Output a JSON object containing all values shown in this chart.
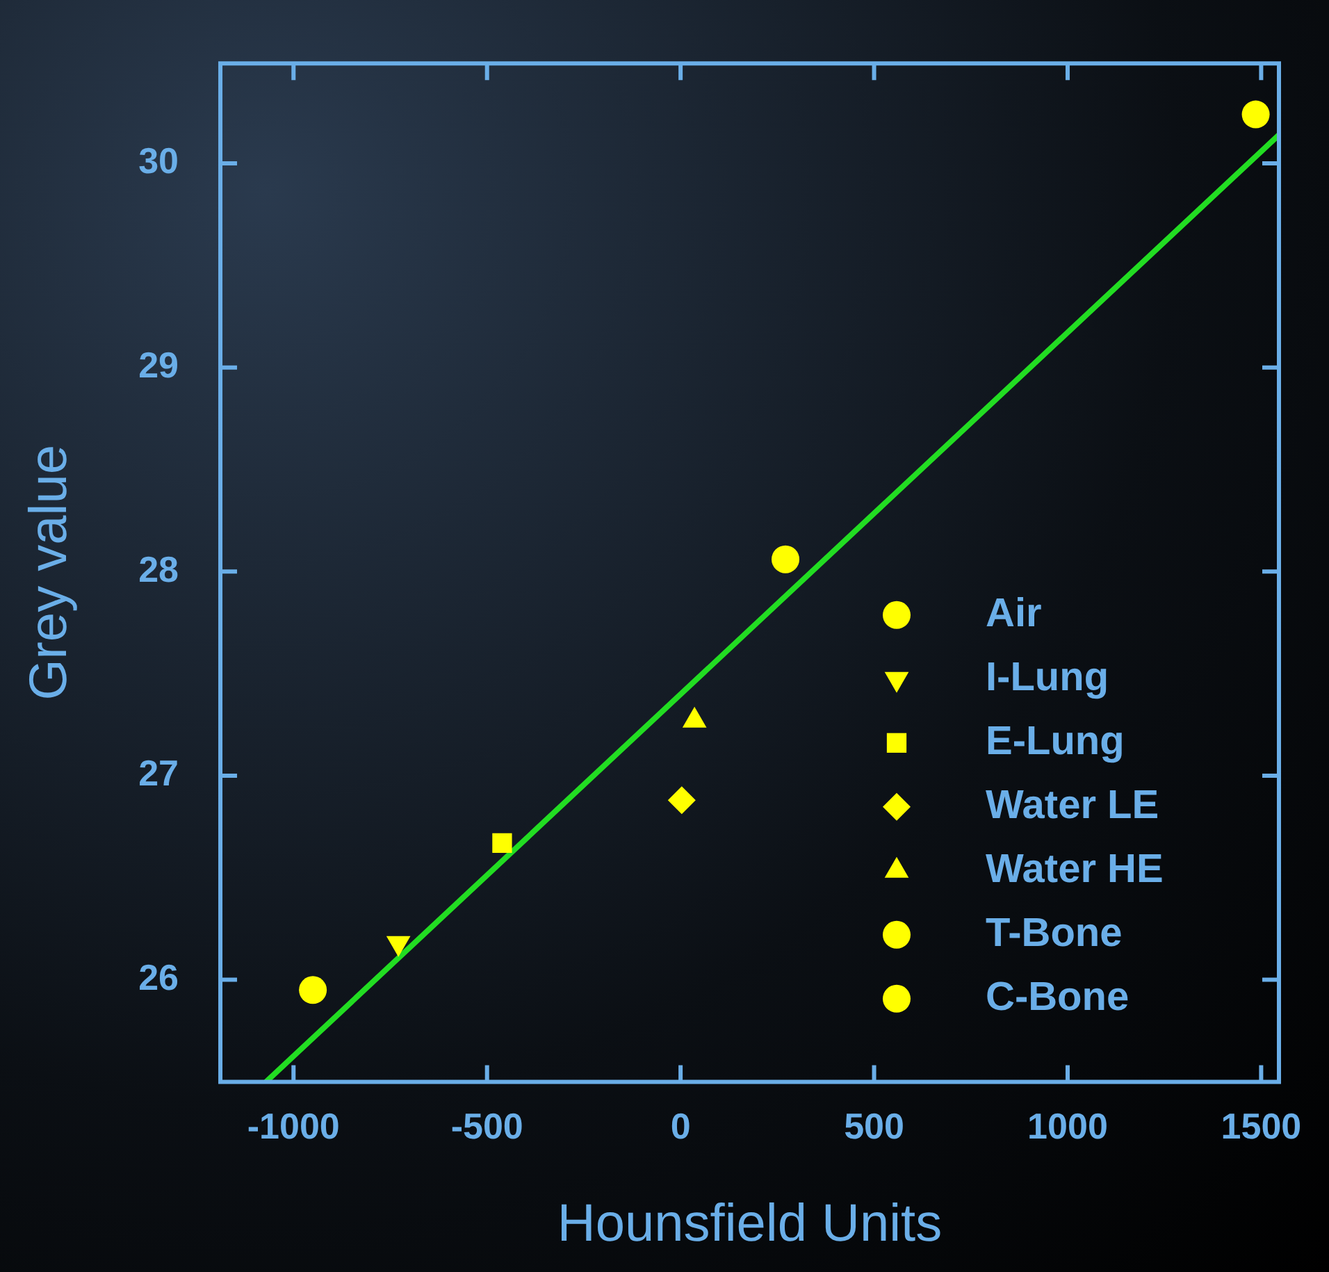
{
  "chart_data": {
    "type": "scatter",
    "xlabel": "Hounsfield Units",
    "ylabel": "Grey value",
    "xlim": [
      -1189,
      1546
    ],
    "ylim": [
      25.5,
      30.49
    ],
    "xticks": [
      -1000,
      -500,
      0,
      500,
      1000,
      1500
    ],
    "yticks": [
      26,
      27,
      28,
      29,
      30
    ],
    "grid": false,
    "legend": "right",
    "series": [
      {
        "name": "Air",
        "color": "#ffff00",
        "marker": "circle",
        "x": [
          -950
        ],
        "values": [
          25.95
        ]
      },
      {
        "name": "I-Lung",
        "color": "#ffff00",
        "marker": "triangle-down",
        "x": [
          -729
        ],
        "values": [
          26.18
        ]
      },
      {
        "name": "E-Lung",
        "color": "#ffff00",
        "marker": "square",
        "x": [
          -461
        ],
        "values": [
          26.67
        ]
      },
      {
        "name": "Water LE",
        "color": "#ffff00",
        "marker": "diamond",
        "x": [
          3
        ],
        "values": [
          26.88
        ]
      },
      {
        "name": "Water HE",
        "color": "#ffff00",
        "marker": "triangle",
        "x": [
          36
        ],
        "values": [
          27.27
        ]
      },
      {
        "name": "T-Bone",
        "color": "#ffff00",
        "marker": "circle",
        "x": [
          271
        ],
        "values": [
          28.06
        ]
      },
      {
        "name": "C-Bone",
        "color": "#ffff00",
        "marker": "circle",
        "x": [
          1486
        ],
        "values": [
          30.24
        ]
      },
      {
        "type": "line",
        "color": "#22dd22",
        "marker": "none",
        "x": [
          -1071,
          1546
        ],
        "values": [
          25.5,
          30.14
        ]
      }
    ]
  }
}
